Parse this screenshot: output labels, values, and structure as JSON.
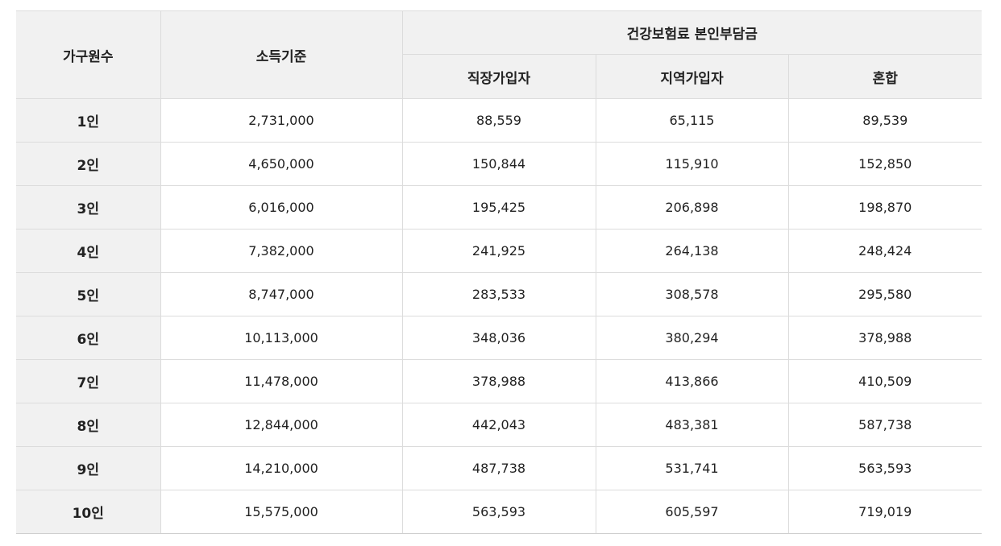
{
  "table": {
    "headers": {
      "household": "가구원수",
      "income": "소득기준",
      "premium_group": "건강보험료 본인부담금",
      "sub": [
        "직장가입자",
        "지역가입자",
        "혼합"
      ]
    },
    "rows": [
      {
        "household": "1인",
        "income": "2,731,000",
        "workplace": "88,559",
        "regional": "65,115",
        "mixed": "89,539"
      },
      {
        "household": "2인",
        "income": "4,650,000",
        "workplace": "150,844",
        "regional": "115,910",
        "mixed": "152,850"
      },
      {
        "household": "3인",
        "income": "6,016,000",
        "workplace": "195,425",
        "regional": "206,898",
        "mixed": "198,870"
      },
      {
        "household": "4인",
        "income": "7,382,000",
        "workplace": "241,925",
        "regional": "264,138",
        "mixed": "248,424"
      },
      {
        "household": "5인",
        "income": "8,747,000",
        "workplace": "283,533",
        "regional": "308,578",
        "mixed": "295,580"
      },
      {
        "household": "6인",
        "income": "10,113,000",
        "workplace": "348,036",
        "regional": "380,294",
        "mixed": "378,988"
      },
      {
        "household": "7인",
        "income": "11,478,000",
        "workplace": "378,988",
        "regional": "413,866",
        "mixed": "410,509"
      },
      {
        "household": "8인",
        "income": "12,844,000",
        "workplace": "442,043",
        "regional": "483,381",
        "mixed": "587,738"
      },
      {
        "household": "9인",
        "income": "14,210,000",
        "workplace": "487,738",
        "regional": "531,741",
        "mixed": "563,593"
      },
      {
        "household": "10인",
        "income": "15,575,000",
        "workplace": "563,593",
        "regional": "605,597",
        "mixed": "719,019"
      }
    ]
  }
}
